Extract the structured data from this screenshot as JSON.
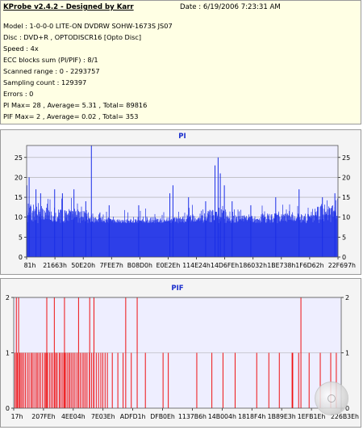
{
  "header": {
    "title": "KProbe v2.4.2 - Designed by Karr",
    "date": "Date : 6/19/2006 7:23:31 AM",
    "lines": [
      "Model : 1-0-0-0 LITE-ON DVDRW SOHW-1673S JS07",
      "Disc : DVD+R , OPTODISCR16 [Opto Disc]",
      "Speed : 4x",
      "ECC blocks sum (PI/PIF) : 8/1",
      "Scanned range : 0 - 2293757",
      "Sampling count : 129397",
      "Errors : 0",
      "PI Max= 28 , Average= 5.31 , Total= 89816",
      "PIF Max= 2 , Average= 0.02 , Total= 353"
    ]
  },
  "colors": {
    "header_bg": "#ffffe4",
    "plot_bg": "#eeeeff",
    "pi_bar": "#1a2ee6",
    "pif_bar": "#ee1111",
    "title_text": "#1a2ecc",
    "grid": "#a8a8a8"
  },
  "icons": {
    "disc": "disc-icon"
  },
  "chart_data": [
    {
      "type": "bar",
      "title": "PI",
      "ylim": [
        0,
        28
      ],
      "yticks": [
        0,
        5,
        10,
        15,
        20,
        25
      ],
      "xticks": [
        "81h",
        "21663h",
        "50E20h",
        "7FEE7h",
        "B08D0h",
        "E0E2Eh",
        "114E24h",
        "14D6FEh",
        "186032h",
        "1BE738h",
        "1F6D62h",
        "22F697h"
      ],
      "grid": true,
      "series": [
        {
          "baseline": 8.5,
          "segments": [
            {
              "from": 0.0,
              "to": 0.03,
              "level": 13.5
            },
            {
              "from": 0.03,
              "to": 0.07,
              "level": 13
            },
            {
              "from": 0.07,
              "to": 0.13,
              "level": 12
            },
            {
              "from": 0.13,
              "to": 0.2,
              "level": 12
            },
            {
              "from": 0.2,
              "to": 0.27,
              "level": 10
            },
            {
              "from": 0.27,
              "to": 0.4,
              "level": 9.5
            },
            {
              "from": 0.4,
              "to": 0.5,
              "level": 10
            },
            {
              "from": 0.5,
              "to": 0.58,
              "level": 11
            },
            {
              "from": 0.58,
              "to": 0.64,
              "level": 12
            },
            {
              "from": 0.64,
              "to": 0.75,
              "level": 10.5
            },
            {
              "from": 0.75,
              "to": 0.85,
              "level": 11
            },
            {
              "from": 0.85,
              "to": 0.93,
              "level": 11
            },
            {
              "from": 0.93,
              "to": 1.0,
              "level": 13
            }
          ],
          "peaks": [
            {
              "at": 0.001,
              "value": 18
            },
            {
              "at": 0.008,
              "value": 20
            },
            {
              "at": 0.03,
              "value": 17
            },
            {
              "at": 0.045,
              "value": 16
            },
            {
              "at": 0.09,
              "value": 17
            },
            {
              "at": 0.115,
              "value": 16
            },
            {
              "at": 0.152,
              "value": 17
            },
            {
              "at": 0.19,
              "value": 14
            },
            {
              "at": 0.208,
              "value": 28
            },
            {
              "at": 0.265,
              "value": 13
            },
            {
              "at": 0.36,
              "value": 13
            },
            {
              "at": 0.46,
              "value": 16
            },
            {
              "at": 0.47,
              "value": 18
            },
            {
              "at": 0.52,
              "value": 15
            },
            {
              "at": 0.575,
              "value": 14
            },
            {
              "at": 0.605,
              "value": 23
            },
            {
              "at": 0.615,
              "value": 25
            },
            {
              "at": 0.622,
              "value": 21
            },
            {
              "at": 0.635,
              "value": 18
            },
            {
              "at": 0.66,
              "value": 14
            },
            {
              "at": 0.72,
              "value": 13
            },
            {
              "at": 0.8,
              "value": 15
            },
            {
              "at": 0.875,
              "value": 17
            },
            {
              "at": 0.95,
              "value": 15
            },
            {
              "at": 0.99,
              "value": 16
            }
          ]
        }
      ]
    },
    {
      "type": "bar",
      "title": "PIF",
      "ylim": [
        0,
        2
      ],
      "yticks": [
        0,
        1,
        2
      ],
      "xticks": [
        "17h",
        "207FEh",
        "4EE04h",
        "7E03Eh",
        "ADFD1h",
        "DFB0Eh",
        "1137B6h",
        "14B004h",
        "1818F4h",
        "1B89E3h",
        "1EFB1Eh",
        "226B3Eh"
      ],
      "grid": true,
      "series": [
        {
          "ones": [
            0.004,
            0.011,
            0.018,
            0.022,
            0.026,
            0.031,
            0.036,
            0.042,
            0.047,
            0.053,
            0.057,
            0.062,
            0.068,
            0.072,
            0.077,
            0.082,
            0.088,
            0.094,
            0.098,
            0.103,
            0.109,
            0.114,
            0.119,
            0.125,
            0.129,
            0.133,
            0.139,
            0.143,
            0.148,
            0.153,
            0.158,
            0.163,
            0.168,
            0.172,
            0.177,
            0.182,
            0.187,
            0.193,
            0.198,
            0.203,
            0.209,
            0.214,
            0.219,
            0.224,
            0.231,
            0.238,
            0.244,
            0.252,
            0.259,
            0.266,
            0.272,
            0.279,
            0.286,
            0.301,
            0.318,
            0.334,
            0.359,
            0.402,
            0.456,
            0.472,
            0.559,
            0.605,
            0.639,
            0.676,
            0.742,
            0.779,
            0.811,
            0.85,
            0.852,
            0.87,
            0.902,
            0.936,
            0.968,
            0.985
          ],
          "twos": [
            0.008,
            0.015,
            0.101,
            0.124,
            0.155,
            0.198,
            0.232,
            0.245,
            0.342,
            0.377,
            0.877
          ]
        }
      ]
    }
  ]
}
